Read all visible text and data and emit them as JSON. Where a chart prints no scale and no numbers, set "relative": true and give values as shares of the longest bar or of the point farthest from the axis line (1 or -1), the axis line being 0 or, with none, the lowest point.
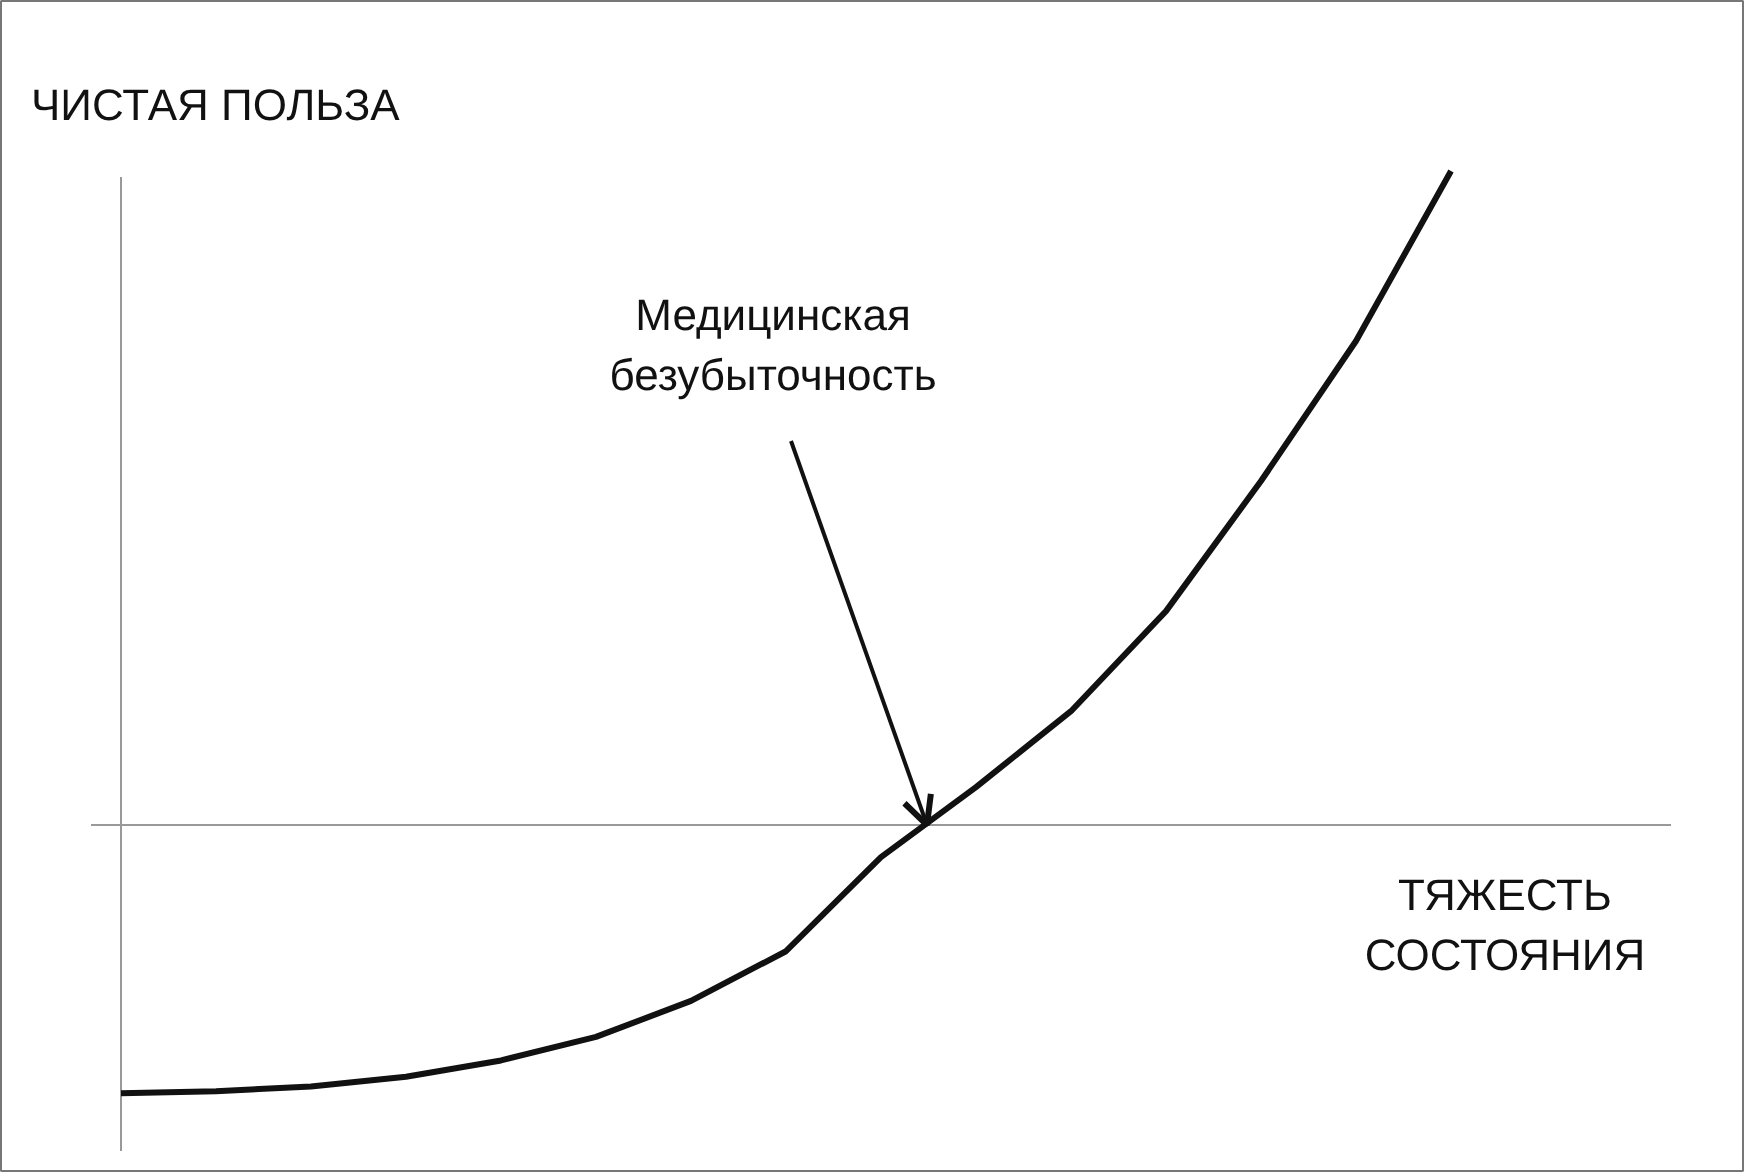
{
  "chart_data": {
    "type": "line",
    "relative": true,
    "ylabel": "ЧИСТАЯ ПОЛЬЗА",
    "xlabel": "ТЯЖЕСТЬ\nСОСТОЯНИЯ",
    "categories": [
      null,
      null,
      null,
      null,
      null,
      null,
      null,
      null,
      null,
      null,
      null,
      null,
      null,
      null,
      null
    ],
    "series": [
      {
        "color": "#111111",
        "values": [
          -0.41,
          -0.407,
          -0.4,
          -0.385,
          -0.36,
          -0.324,
          -0.269,
          -0.193,
          -0.049,
          0.058,
          0.174,
          0.327,
          0.526,
          0.74,
          1
        ]
      }
    ],
    "annotations": [
      "Медицинская\nбезубыточность"
    ],
    "grid": false,
    "marker": "none",
    "line_style": "solid"
  }
}
